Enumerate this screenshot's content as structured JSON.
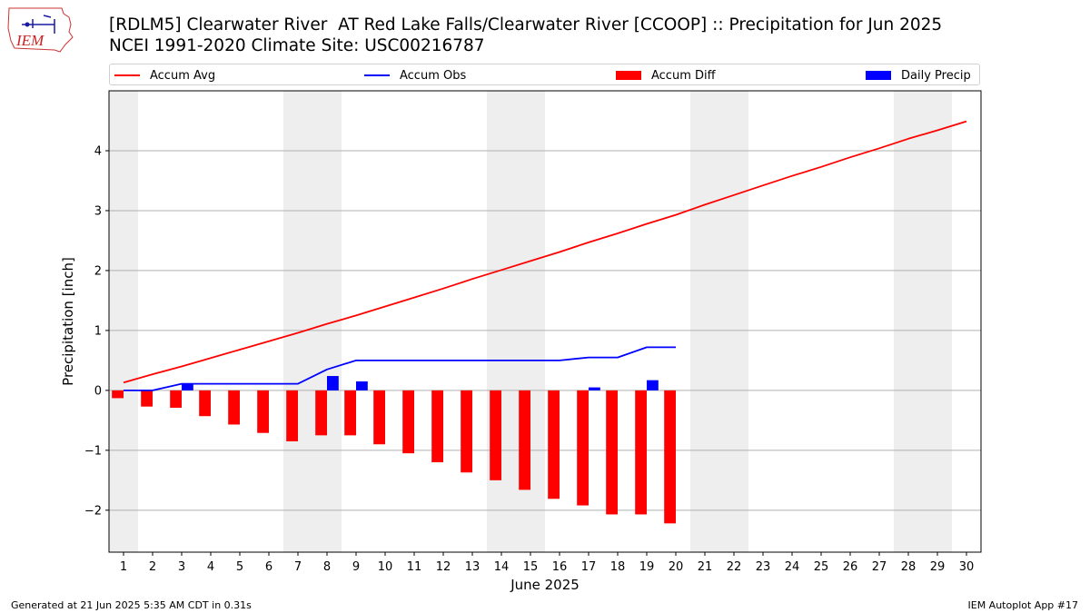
{
  "logo": {
    "text": "IEM"
  },
  "title": "[RDLM5] Clearwater River  AT Red Lake Falls/Clearwater River [CCOOP] :: Precipitation for Jun 2025",
  "subtitle": "NCEI 1991-2020 Climate Site: USC00216787",
  "footer": {
    "generated": "Generated at 21 Jun 2025 5:35 AM CDT in 0.31s",
    "app": "IEM Autoplot App #17"
  },
  "colors": {
    "avg": "#ff0000",
    "obs": "#0000ff",
    "diff": "#ff0000",
    "daily": "#0000ff",
    "weekend": "#eeeeee",
    "grid": "#b0b0b0"
  },
  "chart_data": {
    "type": "bar+line",
    "xlabel": "June 2025",
    "ylabel": "Precipitation [inch]",
    "xlim": [
      0.5,
      30.5
    ],
    "ylim": [
      -2.7,
      5.0
    ],
    "yticks": [
      -2,
      -1,
      0,
      1,
      2,
      3,
      4
    ],
    "ytick_labels": [
      "−2",
      "−1",
      "0",
      "1",
      "2",
      "3",
      "4"
    ],
    "days": [
      1,
      2,
      3,
      4,
      5,
      6,
      7,
      8,
      9,
      10,
      11,
      12,
      13,
      14,
      15,
      16,
      17,
      18,
      19,
      20,
      21,
      22,
      23,
      24,
      25,
      26,
      27,
      28,
      29,
      30
    ],
    "weekend_days": [
      1,
      7,
      8,
      14,
      15,
      21,
      22,
      28,
      29
    ],
    "grid": "horizontal",
    "legend_position": "top",
    "series": [
      {
        "name": "Accum Avg",
        "kind": "line",
        "color": "#ff0000",
        "values": [
          0.13,
          0.27,
          0.4,
          0.54,
          0.68,
          0.82,
          0.96,
          1.11,
          1.25,
          1.4,
          1.55,
          1.7,
          1.86,
          2.01,
          2.16,
          2.31,
          2.47,
          2.62,
          2.78,
          2.93,
          3.1,
          3.26,
          3.42,
          3.58,
          3.73,
          3.89,
          4.04,
          4.2,
          4.34,
          4.49
        ]
      },
      {
        "name": "Accum Obs",
        "kind": "line",
        "color": "#0000ff",
        "values": [
          0.0,
          0.0,
          0.11,
          0.11,
          0.11,
          0.11,
          0.11,
          0.35,
          0.5,
          0.5,
          0.5,
          0.5,
          0.5,
          0.5,
          0.5,
          0.5,
          0.55,
          0.55,
          0.72,
          0.72
        ]
      },
      {
        "name": "Accum Diff",
        "kind": "bar",
        "color": "#ff0000",
        "values": [
          -0.13,
          -0.27,
          -0.29,
          -0.43,
          -0.57,
          -0.71,
          -0.85,
          -0.75,
          -0.75,
          -0.9,
          -1.05,
          -1.2,
          -1.37,
          -1.5,
          -1.66,
          -1.81,
          -1.92,
          -2.07,
          -2.07,
          -2.22
        ]
      },
      {
        "name": "Daily Precip",
        "kind": "bar",
        "color": "#0000ff",
        "values": [
          0,
          0,
          0.11,
          0,
          0,
          0,
          0,
          0.24,
          0.15,
          0,
          0,
          0,
          0,
          0,
          0,
          0,
          0.05,
          0,
          0.17,
          0
        ]
      }
    ]
  }
}
